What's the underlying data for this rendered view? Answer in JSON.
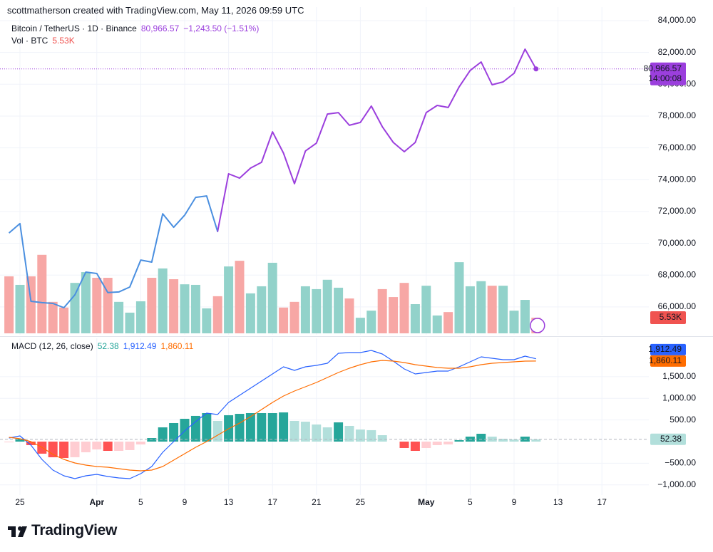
{
  "header": {
    "attribution": "scottmatherson created with TradingView.com, May 11, 2026 09:59 UTC"
  },
  "footer": {
    "brand": "TradingView"
  },
  "chart_data": [
    {
      "type": "line",
      "title": "Bitcoin / TetherUS · 1D · Binance",
      "change": "−1,243.50 (−1.51%)",
      "countdown": "14:00:08",
      "x": [
        "Mar 24",
        "Mar 25",
        "Mar 26",
        "Mar 27",
        "Mar 28",
        "Mar 29",
        "Mar 30",
        "Mar 31",
        "Apr 1",
        "Apr 2",
        "Apr 3",
        "Apr 4",
        "Apr 5",
        "Apr 6",
        "Apr 7",
        "Apr 8",
        "Apr 9",
        "Apr 10",
        "Apr 11",
        "Apr 12",
        "Apr 13",
        "Apr 14",
        "Apr 15",
        "Apr 16",
        "Apr 17",
        "Apr 18",
        "Apr 19",
        "Apr 20",
        "Apr 21",
        "Apr 22",
        "Apr 23",
        "Apr 24",
        "Apr 25",
        "Apr 26",
        "Apr 27",
        "Apr 28",
        "Apr 29",
        "Apr 30",
        "May 1",
        "May 2",
        "May 3",
        "May 4",
        "May 5",
        "May 6",
        "May 7",
        "May 8",
        "May 9",
        "May 10",
        "May 11",
        "May 12",
        "May 13",
        "May 14",
        "May 15",
        "May 16",
        "May 17"
      ],
      "xticks": [
        {
          "value": "Mar 25",
          "label": "25"
        },
        {
          "value": "Apr 1",
          "label": "Apr"
        },
        {
          "value": "Apr 5",
          "label": "5"
        },
        {
          "value": "Apr 9",
          "label": "9"
        },
        {
          "value": "Apr 13",
          "label": "13"
        },
        {
          "value": "Apr 17",
          "label": "17"
        },
        {
          "value": "Apr 21",
          "label": "21"
        },
        {
          "value": "Apr 25",
          "label": "25"
        },
        {
          "value": "May 1",
          "label": "May"
        },
        {
          "value": "May 5",
          "label": "5"
        },
        {
          "value": "May 9",
          "label": "9"
        },
        {
          "value": "May 13",
          "label": "13"
        },
        {
          "value": "May 17",
          "label": "17"
        }
      ],
      "series": [
        {
          "colors": [
            "#4a8fe0",
            "#9b3fdd"
          ],
          "color": "#9b3fdd",
          "last_label": "80,966.57",
          "values": [
            70650,
            71240,
            66356,
            66270,
            66220,
            65950,
            66760,
            68190,
            68100,
            66900,
            66940,
            67250,
            68950,
            68820,
            71860,
            71010,
            71770,
            72890,
            72980,
            70740,
            74370,
            74100,
            74730,
            75090,
            77010,
            75670,
            73750,
            75810,
            76300,
            78130,
            78220,
            77420,
            77600,
            78630,
            77330,
            76340,
            75760,
            76340,
            78220,
            78670,
            78540,
            79840,
            80870,
            81400,
            79970,
            80150,
            80690,
            82210.07,
            80966.57,
            null,
            null,
            null,
            null,
            null,
            null
          ]
        }
      ],
      "ylim": [
        64340,
        84850
      ],
      "yticks": [
        {
          "value": 66000,
          "label": "66,000.00"
        },
        {
          "value": 68000,
          "label": "68,000.00"
        },
        {
          "value": 70000,
          "label": "70,000.00"
        },
        {
          "value": 72000,
          "label": "72,000.00"
        },
        {
          "value": 74000,
          "label": "74,000.00"
        },
        {
          "value": 76000,
          "label": "76,000.00"
        },
        {
          "value": 78000,
          "label": "78,000.00"
        },
        {
          "value": 80000,
          "label": "80,000.00"
        },
        {
          "value": 82000,
          "label": "82,000.00"
        },
        {
          "value": 84000,
          "label": "84,000.00"
        }
      ],
      "grid": true
    },
    {
      "type": "bar",
      "title": "Vol · BTC",
      "last_label": "5.53K",
      "label_color": "#f05350",
      "up_color": "#92d2ca",
      "down_color": "#f7a7a5",
      "values": [
        20.1,
        17.1,
        20.1,
        27.7,
        11.1,
        9.1,
        17.8,
        21.6,
        19.6,
        19.6,
        11.1,
        7.3,
        11.3,
        19.6,
        22.9,
        19.1,
        17.3,
        17.1,
        8.8,
        13.1,
        23.6,
        25.6,
        14.1,
        16.6,
        24.9,
        9.1,
        11.1,
        16.6,
        15.6,
        18.9,
        16.1,
        12.3,
        5.5,
        8.0,
        15.6,
        12.8,
        17.8,
        10.3,
        16.8,
        6.3,
        7.5,
        25.1,
        16.6,
        18.4,
        16.8,
        16.8,
        8.0,
        11.8,
        5.53,
        null,
        null,
        null,
        null,
        null,
        null
      ],
      "ylim": [
        0,
        115.1
      ]
    },
    {
      "type": "macd",
      "title": "MACD (12, 26, close)",
      "histogram": {
        "colors": [
          "#26a69a",
          "#b2dfdb",
          "#ff5252",
          "#ffcdd2"
        ],
        "last_label": "52.38",
        "values": [
          -17,
          66,
          -82,
          -279,
          -362,
          -379,
          -361,
          -247,
          -181,
          -214,
          -214,
          -197,
          -66,
          82,
          329,
          428,
          527,
          593,
          658,
          477,
          609,
          641,
          658,
          658,
          658,
          674,
          477,
          460,
          395,
          329,
          444,
          362,
          279,
          264,
          148,
          0,
          -148,
          -214,
          -148,
          -82,
          -65,
          33,
          115,
          181,
          115,
          66,
          50,
          115,
          52.38,
          null,
          null,
          null,
          null,
          null,
          null
        ]
      },
      "series": [
        {
          "color": "#2962ff",
          "last_label": "1,912.49",
          "values": [
            82,
            132,
            -82,
            -411,
            -658,
            -790,
            -855,
            -790,
            -757,
            -806,
            -839,
            -855,
            -740,
            -576,
            -247,
            0,
            247,
            461,
            658,
            625,
            905,
            1069,
            1234,
            1398,
            1563,
            1727,
            1645,
            1727,
            1760,
            1810,
            2040,
            2056,
            2056,
            2106,
            2023,
            1859,
            1678,
            1563,
            1596,
            1629,
            1629,
            1727,
            1842,
            1958,
            1925,
            1892,
            1892,
            1974,
            1912.49,
            null,
            null,
            null,
            null,
            null,
            null
          ]
        },
        {
          "color": "#ff6d00",
          "last_label": "1,860.11",
          "values": [
            99,
            66,
            0,
            -132,
            -296,
            -411,
            -494,
            -543,
            -576,
            -592,
            -625,
            -658,
            -674,
            -658,
            -576,
            -428,
            -280,
            -132,
            0,
            148,
            296,
            428,
            576,
            740,
            905,
            1053,
            1168,
            1267,
            1365,
            1481,
            1596,
            1694,
            1777,
            1842,
            1875,
            1859,
            1826,
            1777,
            1744,
            1711,
            1694,
            1694,
            1727,
            1777,
            1810,
            1826,
            1842,
            1859,
            1860.11,
            null,
            null,
            null,
            null,
            null,
            null
          ]
        }
      ],
      "ylim": [
        -1234,
        2336
      ],
      "yticks": [
        {
          "value": -1000,
          "label": "−1,000.00"
        },
        {
          "value": -500,
          "label": "−500.00"
        },
        {
          "value": 500,
          "label": "500.00"
        },
        {
          "value": 1000,
          "label": "1,000.00"
        },
        {
          "value": 1500,
          "label": "1,500.00"
        }
      ],
      "grid": true
    }
  ]
}
